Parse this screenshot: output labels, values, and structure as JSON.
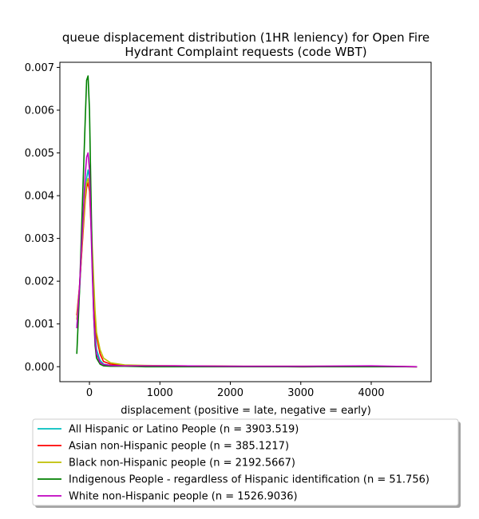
{
  "chart_data": {
    "type": "line",
    "title_line1": "queue displacement distribution (1HR leniency) for Open Fire",
    "title_line2": "Hydrant Complaint  requests (code WBT)",
    "xlabel": "displacement (positive = late, negative = early)",
    "ylabel": "",
    "xlim": [
      -420,
      4850
    ],
    "ylim": [
      -0.00035,
      0.00712
    ],
    "xticks": [
      0,
      1000,
      2000,
      3000,
      4000
    ],
    "xtick_labels": [
      "0",
      "1000",
      "2000",
      "3000",
      "4000"
    ],
    "yticks": [
      0.0,
      0.001,
      0.002,
      0.003,
      0.004,
      0.005,
      0.006,
      0.007
    ],
    "ytick_labels": [
      "0.000",
      "0.001",
      "0.002",
      "0.003",
      "0.004",
      "0.005",
      "0.006",
      "0.007"
    ],
    "grid": false,
    "legend_placement": "below-plot",
    "series": [
      {
        "name": "All Hispanic or Latino People (n = 3903.519)",
        "color": "#00bfbf",
        "x": [
          -180,
          -140,
          -100,
          -60,
          -40,
          -20,
          0,
          20,
          40,
          60,
          80,
          100,
          150,
          200,
          300,
          500,
          800,
          1200,
          2000,
          3000,
          4000,
          4650
        ],
        "y": [
          0.0009,
          0.0018,
          0.003,
          0.0041,
          0.0044,
          0.0046,
          0.0044,
          0.0036,
          0.0024,
          0.0014,
          0.0008,
          0.0004,
          0.00015,
          6e-05,
          3e-05,
          2e-05,
          1e-05,
          1e-05,
          1e-05,
          0.0,
          1e-05,
          0.0
        ]
      },
      {
        "name": "Asian non-Hispanic people (n = 385.1217)",
        "color": "#ff0000",
        "x": [
          -180,
          -140,
          -100,
          -60,
          -40,
          -20,
          0,
          20,
          40,
          60,
          80,
          100,
          150,
          200,
          300,
          500,
          800,
          1200,
          2000,
          3000,
          4000,
          4650
        ],
        "y": [
          0.0012,
          0.0019,
          0.0029,
          0.0039,
          0.0042,
          0.0043,
          0.0041,
          0.0034,
          0.0026,
          0.0018,
          0.0011,
          0.0007,
          0.0003,
          0.00012,
          6e-05,
          3e-05,
          2e-05,
          2e-05,
          1e-05,
          0.0,
          1e-05,
          0.0
        ]
      },
      {
        "name": "Black non-Hispanic people (n = 2192.5667)",
        "color": "#bfbf00",
        "x": [
          -180,
          -140,
          -100,
          -60,
          -40,
          -20,
          0,
          20,
          40,
          60,
          80,
          100,
          150,
          200,
          300,
          500,
          800,
          1200,
          2000,
          3000,
          4000,
          4650
        ],
        "y": [
          0.0011,
          0.0019,
          0.003,
          0.004,
          0.0043,
          0.0044,
          0.0042,
          0.0036,
          0.0028,
          0.002,
          0.0013,
          0.0008,
          0.0004,
          0.0002,
          9e-05,
          4e-05,
          3e-05,
          2e-05,
          1e-05,
          1e-05,
          1e-05,
          0.0
        ]
      },
      {
        "name": "Indigenous People - regardless of Hispanic identification (n = 51.756)",
        "color": "#008000",
        "x": [
          -180,
          -140,
          -100,
          -60,
          -40,
          -20,
          0,
          20,
          40,
          60,
          80,
          100,
          150,
          200,
          300,
          500,
          800,
          1200,
          2000,
          3000,
          4000,
          4650
        ],
        "y": [
          0.0003,
          0.0018,
          0.0038,
          0.0058,
          0.0067,
          0.0068,
          0.006,
          0.0042,
          0.0024,
          0.0012,
          0.0005,
          0.0002,
          6e-05,
          2e-05,
          1e-05,
          1e-05,
          0.0,
          0.0,
          0.0,
          0.0,
          0.0,
          0.0
        ]
      },
      {
        "name": "White non-Hispanic people (n = 1526.9036)",
        "color": "#bf00bf",
        "x": [
          -180,
          -140,
          -100,
          -60,
          -40,
          -20,
          0,
          20,
          40,
          60,
          80,
          100,
          150,
          200,
          300,
          500,
          800,
          1200,
          2000,
          3000,
          4000,
          4650
        ],
        "y": [
          0.0009,
          0.0019,
          0.0032,
          0.0045,
          0.0049,
          0.005,
          0.0046,
          0.0034,
          0.0022,
          0.0012,
          0.0006,
          0.0003,
          0.0001,
          5e-05,
          3e-05,
          2e-05,
          2e-05,
          2e-05,
          1e-05,
          1e-05,
          2e-05,
          0.0
        ]
      }
    ]
  }
}
